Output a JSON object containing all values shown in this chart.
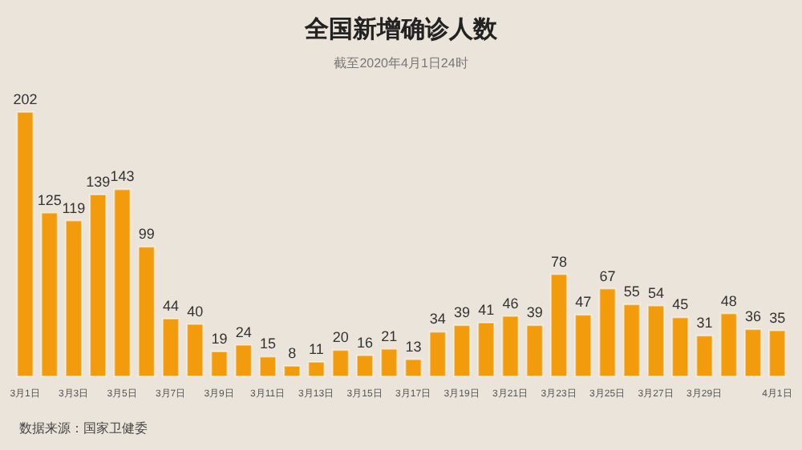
{
  "chart_data": {
    "type": "bar",
    "title": "全国新增确诊人数",
    "subtitle": "截至2020年4月1日24时",
    "categories": [
      "3月1日",
      null,
      "3月3日",
      null,
      "3月5日",
      null,
      "3月7日",
      null,
      "3月9日",
      null,
      "3月11日",
      null,
      "3月13日",
      null,
      "3月15日",
      null,
      "3月17日",
      null,
      "3月19日",
      null,
      "3月21日",
      null,
      "3月23日",
      null,
      "3月25日",
      null,
      "3月27日",
      null,
      "3月29日",
      null,
      null,
      "4月1日"
    ],
    "values": [
      202,
      125,
      119,
      139,
      143,
      99,
      44,
      40,
      19,
      24,
      15,
      8,
      11,
      20,
      16,
      21,
      13,
      34,
      39,
      41,
      46,
      39,
      78,
      47,
      67,
      55,
      54,
      45,
      31,
      48,
      36,
      35
    ],
    "color": "#f29b0c",
    "data_labels": true,
    "annotations": [
      "数据来源：国家卫健委"
    ]
  }
}
